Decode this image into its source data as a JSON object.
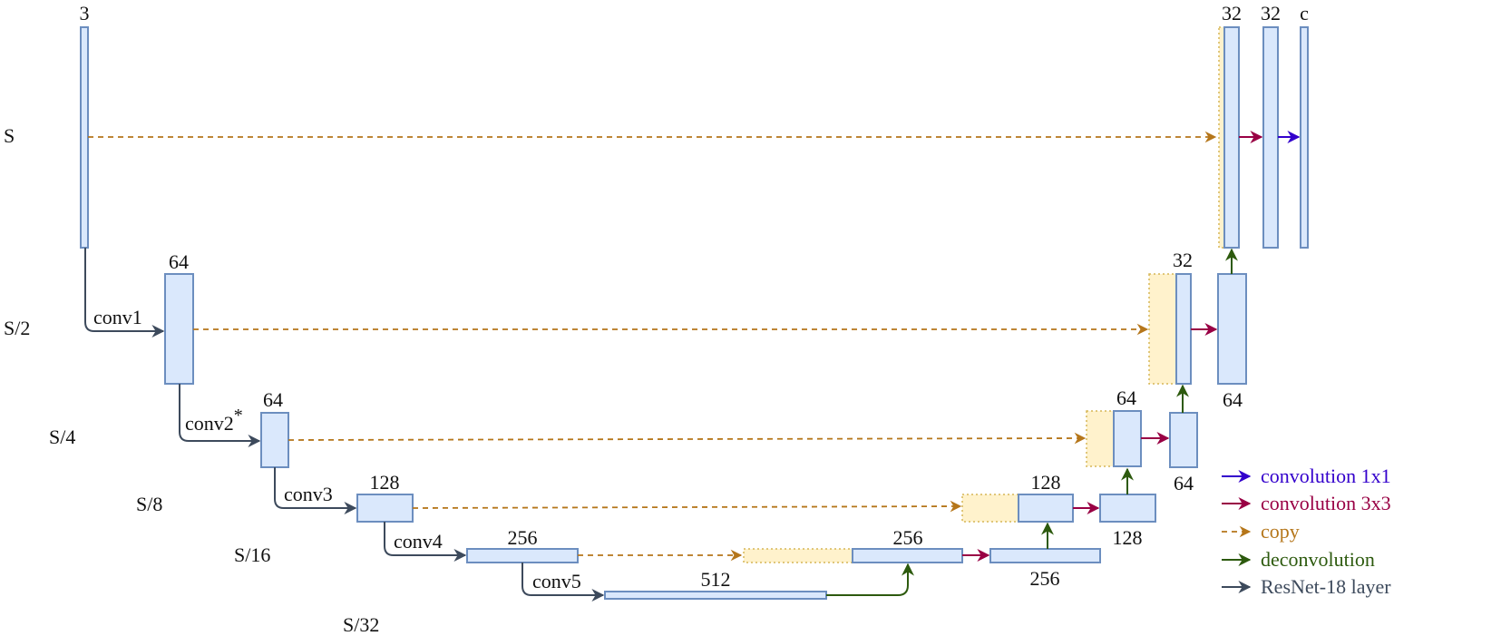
{
  "scales": [
    "S",
    "S/2",
    "S/4",
    "S/8",
    "S/16",
    "S/32"
  ],
  "encoder": {
    "input_channels": "3",
    "conv1": {
      "layer": "conv1",
      "channels": "64"
    },
    "conv2": {
      "layer": "conv2",
      "star": "*",
      "channels": "64"
    },
    "conv3": {
      "layer": "conv3",
      "channels": "128"
    },
    "conv4": {
      "layer": "conv4",
      "channels": "256"
    },
    "conv5": {
      "layer": "conv5",
      "channels": "512"
    }
  },
  "decoder": {
    "s16": {
      "concat_channels": "256",
      "out_channels": "256"
    },
    "s8": {
      "concat_channels": "128",
      "out_channels": "128"
    },
    "s4": {
      "concat_channels": "64",
      "out_channels": "64"
    },
    "s2": {
      "concat_channels": "32",
      "out_channels": "64"
    },
    "s1": {
      "concat_channels": "32",
      "conv_channels": "32",
      "output_channels": "c"
    }
  },
  "legend": {
    "conv1x1": {
      "label": "convolution 1x1",
      "color": "#3300cc"
    },
    "conv3x3": {
      "label": "convolution 3x3",
      "color": "#990044"
    },
    "copy": {
      "label": "copy",
      "color": "#b5761a"
    },
    "deconv": {
      "label": "deconvolution",
      "color": "#2d5a0e"
    },
    "resnet": {
      "label": "ResNet-18 layer",
      "color": "#3d4a5c"
    }
  }
}
